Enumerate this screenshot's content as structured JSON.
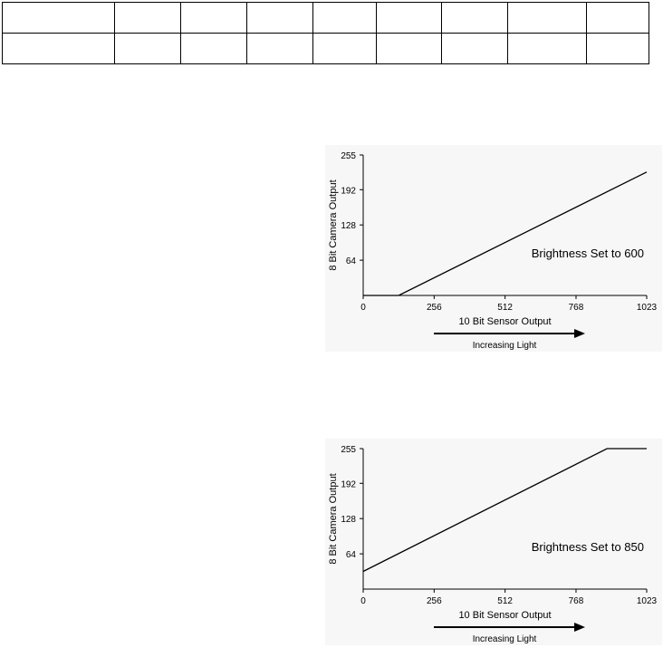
{
  "table": {
    "rows": [
      [
        "",
        "",
        "",
        "",
        "",
        "",
        "",
        "",
        ""
      ],
      [
        "",
        "",
        "",
        "",
        "",
        "",
        "",
        "",
        ""
      ]
    ]
  },
  "chart_data": [
    {
      "type": "line",
      "annotation": "Brightness Set to 600",
      "xlabel": "10 Bit Sensor Output",
      "ylabel": "8 Bit Camera Output",
      "arrow_label": "Increasing Light",
      "xlim": [
        0,
        1023
      ],
      "ylim": [
        0,
        255
      ],
      "xticks": [
        0,
        256,
        512,
        768,
        1023
      ],
      "yticks": [
        64,
        128,
        192,
        255
      ],
      "grid": false,
      "series": [
        {
          "x": [
            0,
            128,
            1023
          ],
          "y": [
            0,
            0,
            224
          ]
        }
      ]
    },
    {
      "type": "line",
      "annotation": "Brightness Set to 850",
      "xlabel": "10 Bit Sensor Output",
      "ylabel": "8 Bit Camera Output",
      "arrow_label": "Increasing Light",
      "xlim": [
        0,
        1023
      ],
      "ylim": [
        0,
        255
      ],
      "xticks": [
        0,
        256,
        512,
        768,
        1023
      ],
      "yticks": [
        64,
        128,
        192,
        255
      ],
      "grid": false,
      "series": [
        {
          "x": [
            0,
            880,
            1023
          ],
          "y": [
            32,
            255,
            255
          ]
        }
      ]
    }
  ]
}
